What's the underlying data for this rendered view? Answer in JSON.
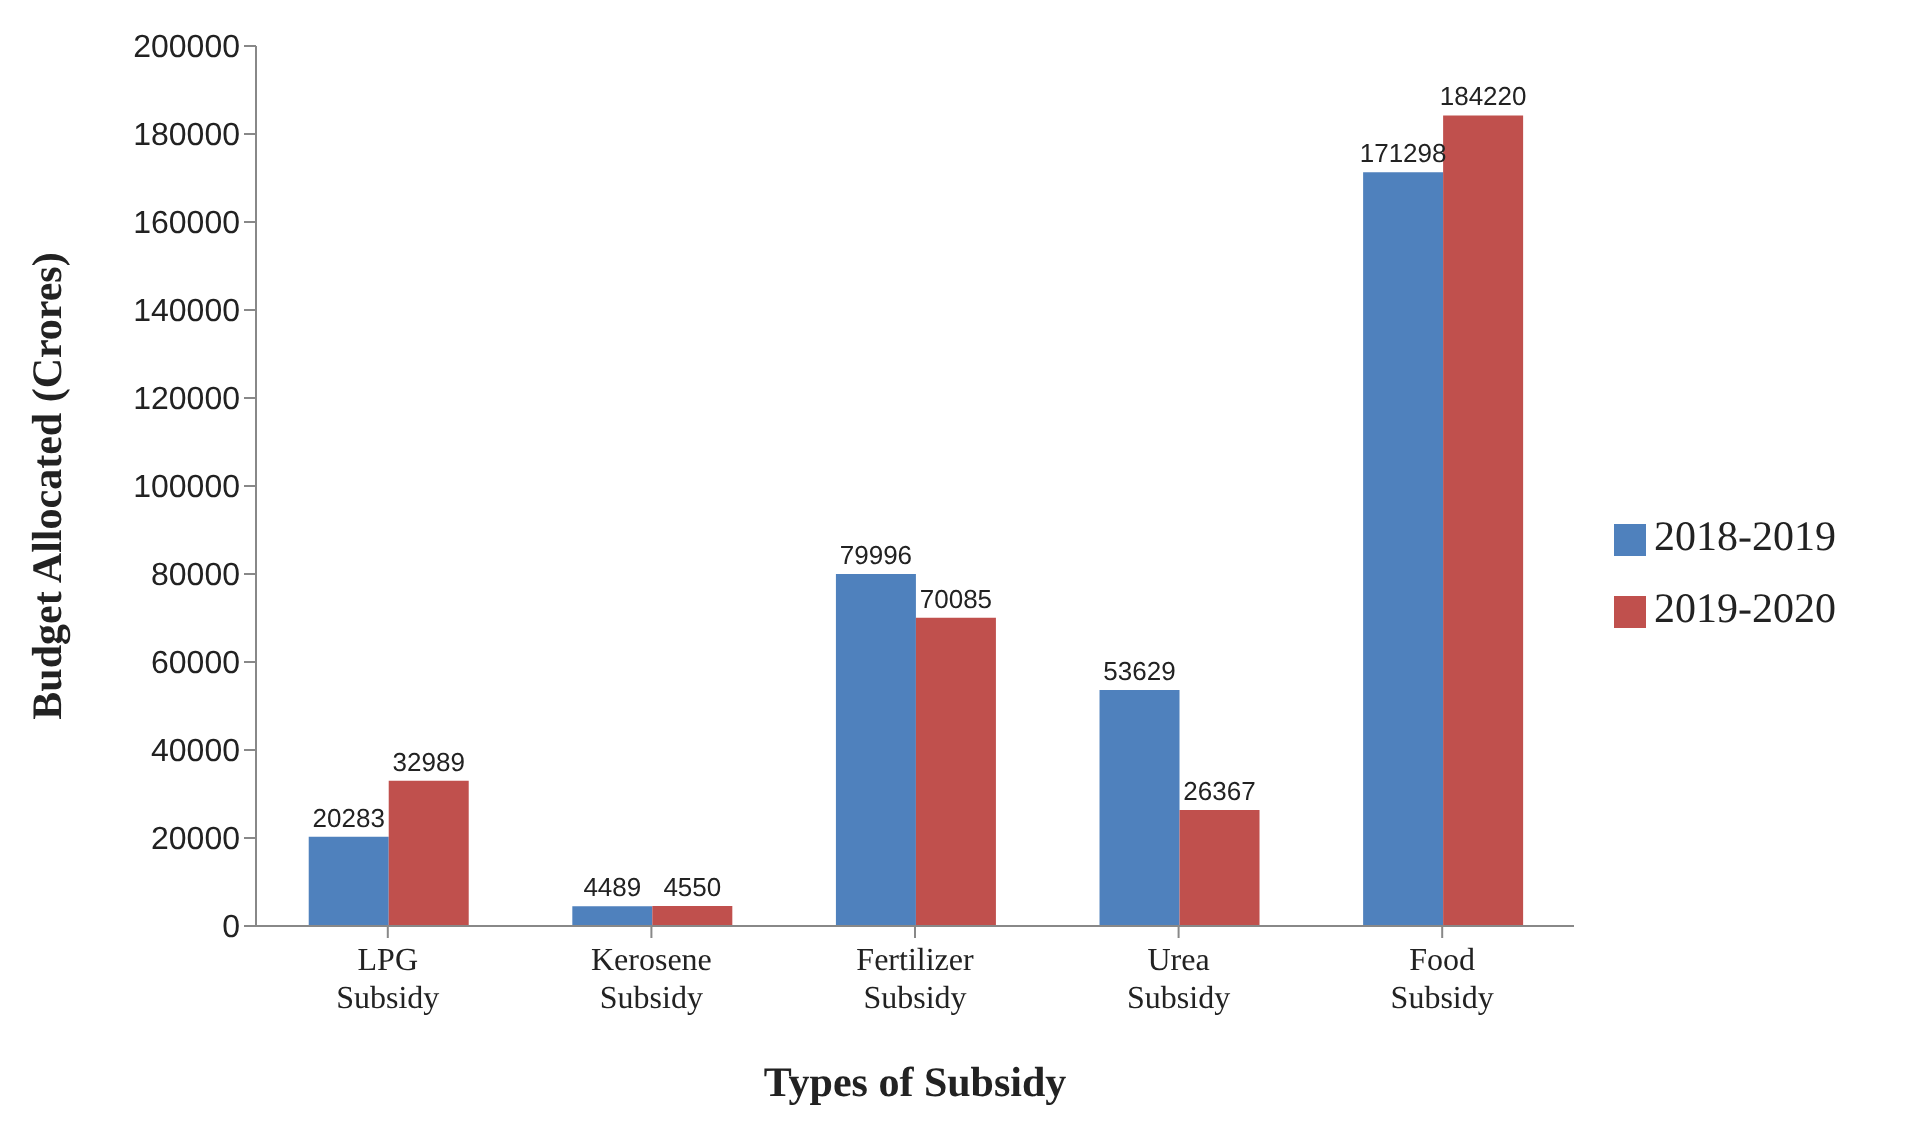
{
  "chart_data": {
    "type": "bar",
    "xlabel": "Types of Subsidy",
    "ylabel": "Budget Allocated (Crores)",
    "categories": [
      "LPG Subsidy",
      "Kerosene Subsidy",
      "Fertilizer Subsidy",
      "Urea Subsidy",
      "Food Subsidy"
    ],
    "series": [
      {
        "name": "2018-2019",
        "color": "#4f81bd",
        "values": [
          20283,
          4489,
          79996,
          53629,
          171298
        ]
      },
      {
        "name": "2019-2020",
        "color": "#c0504d",
        "values": [
          32989,
          4550,
          70085,
          26367,
          184220
        ]
      }
    ],
    "ylim": [
      0,
      200000
    ],
    "yticks": [
      0,
      20000,
      40000,
      60000,
      80000,
      100000,
      120000,
      140000,
      160000,
      180000,
      200000
    ],
    "grid": false,
    "legend": "right",
    "data_labels": true
  }
}
